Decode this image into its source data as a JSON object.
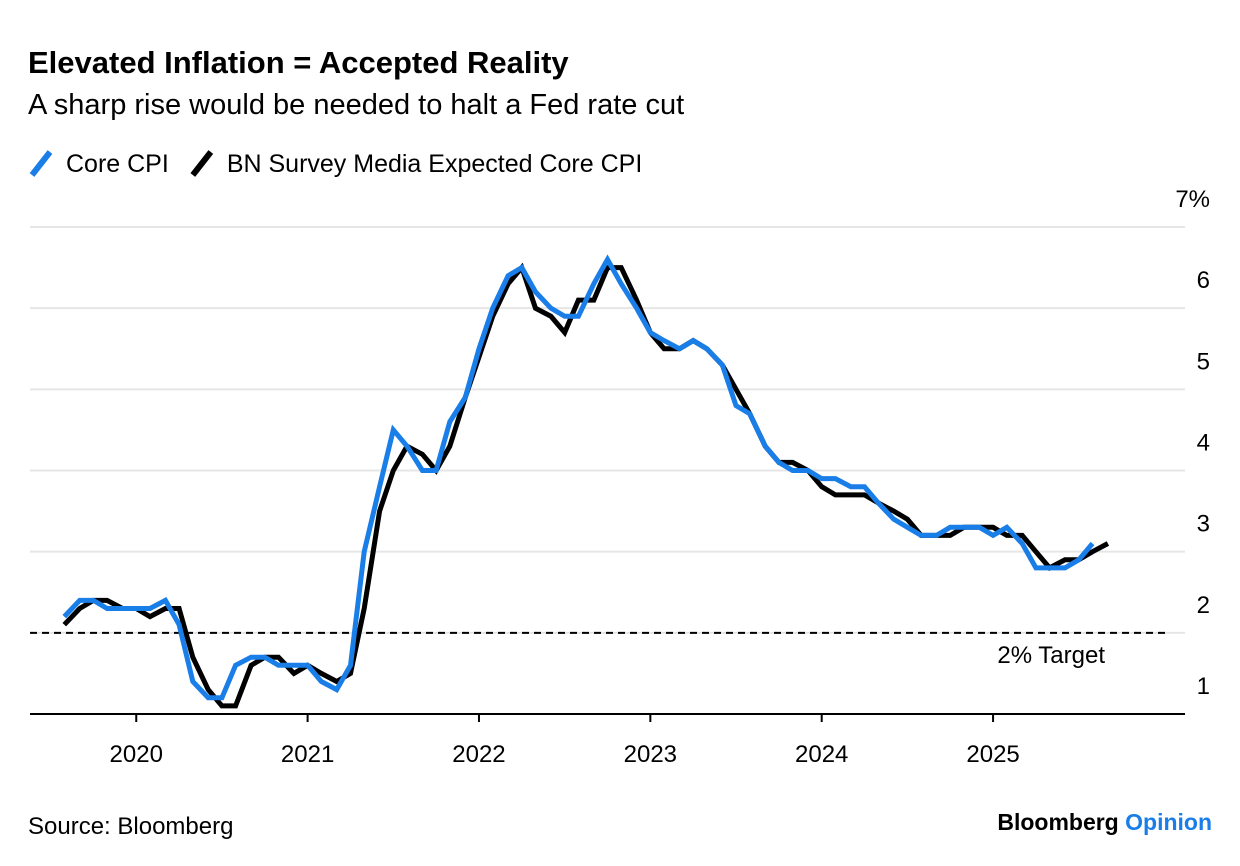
{
  "chart_data": {
    "type": "line",
    "title": "Elevated Inflation = Accepted Reality",
    "subtitle": "A sharp rise would be needed to halt a Fed rate cut",
    "source": "Source: Bloomberg",
    "brand": "Bloomberg",
    "brand_suffix": "Opinion",
    "x": [
      2019.58,
      2019.67,
      2019.75,
      2019.83,
      2019.92,
      2020,
      2020.08,
      2020.17,
      2020.25,
      2020.33,
      2020.42,
      2020.5,
      2020.58,
      2020.67,
      2020.75,
      2020.83,
      2020.92,
      2021,
      2021.08,
      2021.17,
      2021.25,
      2021.33,
      2021.42,
      2021.5,
      2021.58,
      2021.67,
      2021.75,
      2021.83,
      2021.92,
      2022,
      2022.08,
      2022.17,
      2022.25,
      2022.33,
      2022.42,
      2022.5,
      2022.58,
      2022.67,
      2022.75,
      2022.83,
      2022.92,
      2023,
      2023.08,
      2023.17,
      2023.25,
      2023.33,
      2023.42,
      2023.5,
      2023.58,
      2023.67,
      2023.75,
      2023.83,
      2023.92,
      2024,
      2024.08,
      2024.17,
      2024.25,
      2024.33,
      2024.42,
      2024.5,
      2024.58,
      2024.67,
      2024.75,
      2024.83,
      2024.92,
      2025,
      2025.08,
      2025.17,
      2025.25,
      2025.33,
      2025.42,
      2025.5,
      2025.58,
      2025.67
    ],
    "series": [
      {
        "name": "Core CPI",
        "color": "#1a7ee8",
        "values": [
          2.2,
          2.4,
          2.4,
          2.3,
          2.3,
          2.3,
          2.3,
          2.4,
          2.1,
          1.4,
          1.2,
          1.2,
          1.6,
          1.7,
          1.7,
          1.6,
          1.6,
          1.6,
          1.4,
          1.3,
          1.6,
          3.0,
          3.8,
          4.5,
          4.3,
          4.0,
          4.0,
          4.6,
          4.9,
          5.5,
          6.0,
          6.4,
          6.5,
          6.2,
          6.0,
          5.9,
          5.9,
          6.3,
          6.6,
          6.3,
          6.0,
          5.7,
          5.6,
          5.5,
          5.6,
          5.5,
          5.3,
          4.8,
          4.7,
          4.3,
          4.1,
          4.0,
          4.0,
          3.9,
          3.9,
          3.8,
          3.8,
          3.6,
          3.4,
          3.3,
          3.2,
          3.2,
          3.3,
          3.3,
          3.3,
          3.2,
          3.3,
          3.1,
          2.8,
          2.8,
          2.8,
          2.9,
          3.1,
          null
        ]
      },
      {
        "name": "BN Survey Media Expected Core CPI",
        "color": "#000000",
        "values": [
          2.1,
          2.3,
          2.4,
          2.4,
          2.3,
          2.3,
          2.2,
          2.3,
          2.3,
          1.7,
          1.3,
          1.1,
          1.1,
          1.6,
          1.7,
          1.7,
          1.5,
          1.6,
          1.5,
          1.4,
          1.5,
          2.3,
          3.5,
          4.0,
          4.3,
          4.2,
          4.0,
          4.3,
          4.9,
          5.4,
          5.9,
          6.3,
          6.5,
          6.0,
          5.9,
          5.7,
          6.1,
          6.1,
          6.5,
          6.5,
          6.1,
          5.7,
          5.5,
          5.5,
          5.6,
          5.5,
          5.3,
          5.0,
          4.7,
          4.3,
          4.1,
          4.1,
          4.0,
          3.8,
          3.7,
          3.7,
          3.7,
          3.6,
          3.5,
          3.4,
          3.2,
          3.2,
          3.2,
          3.3,
          3.3,
          3.3,
          3.2,
          3.2,
          3.0,
          2.8,
          2.9,
          2.9,
          3.0,
          3.1
        ]
      }
    ],
    "target": 2,
    "target_label": "2% Target",
    "xlim": [
      2019.38,
      2026.12
    ],
    "xticks": [
      2020,
      2021,
      2022,
      2023,
      2024,
      2025
    ],
    "ylim": [
      1,
      7
    ],
    "yticks": [
      1,
      2,
      3,
      4,
      5,
      6,
      {
        "value": 7,
        "label": "7%"
      }
    ],
    "grid": true
  }
}
